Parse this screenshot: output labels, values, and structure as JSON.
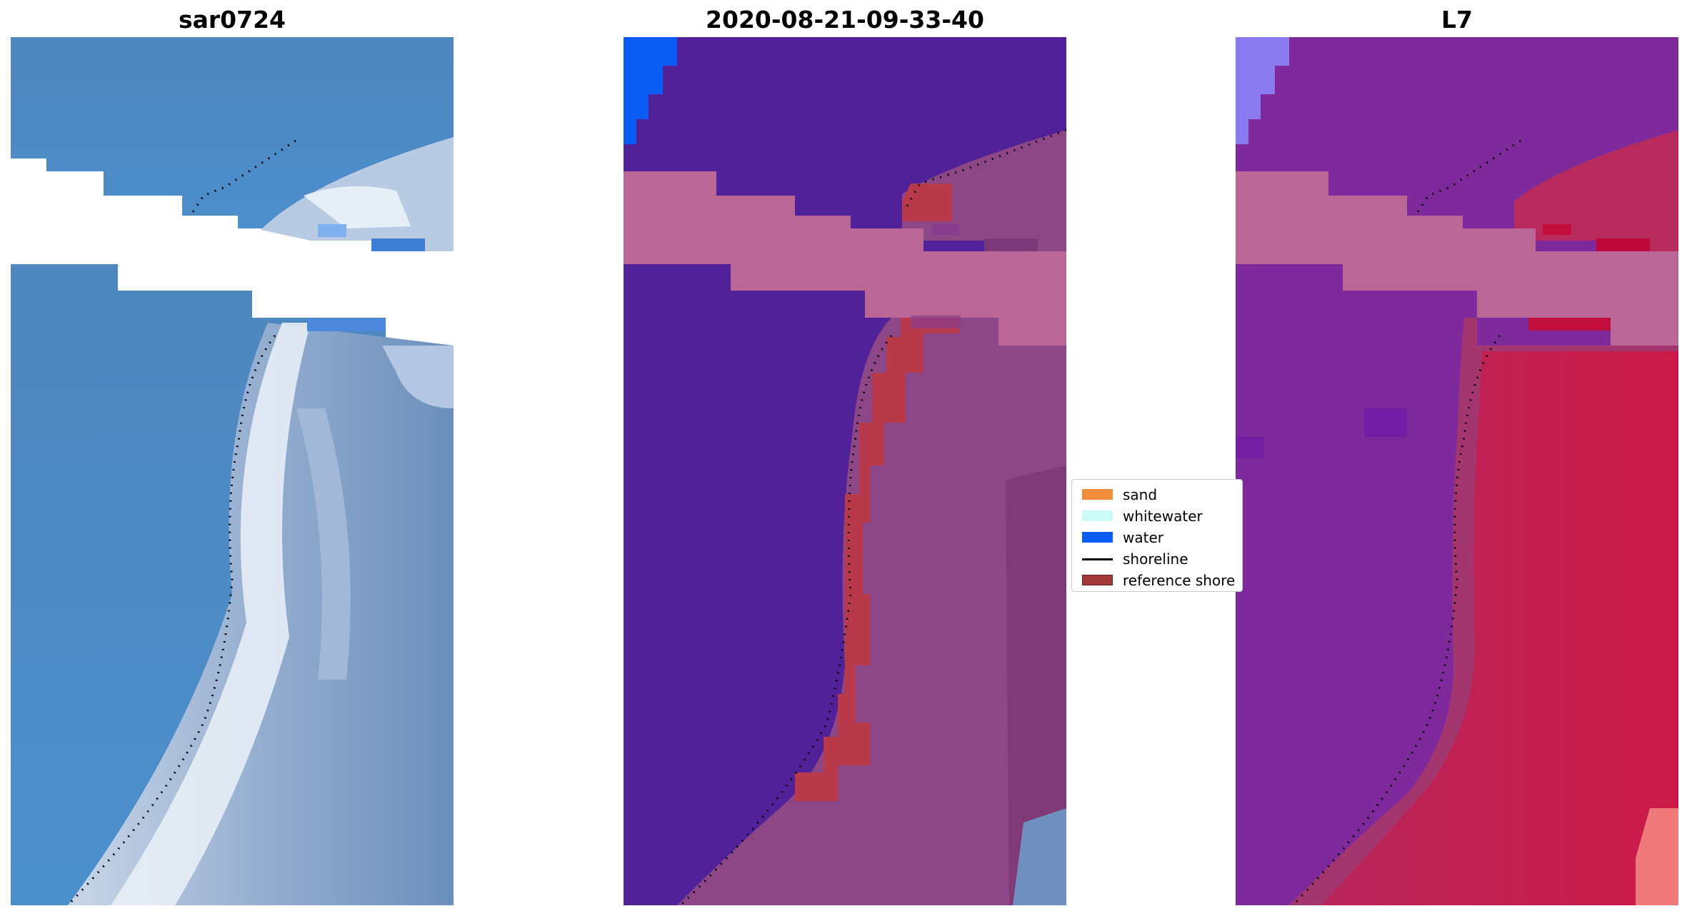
{
  "panels": [
    {
      "title": "sar0724"
    },
    {
      "title": "2020-08-21-09-33-40"
    },
    {
      "title": "L7"
    }
  ],
  "legend": {
    "items": [
      {
        "label": "sand",
        "color": "#f28c3c",
        "kind": "patch"
      },
      {
        "label": "whitewater",
        "color": "#ccfaf4",
        "kind": "patch"
      },
      {
        "label": "water",
        "color": "#0b5cf5",
        "kind": "patch"
      },
      {
        "label": "shoreline",
        "color": "#000000",
        "kind": "line"
      },
      {
        "label": "reference shore",
        "color": "#a33a3a",
        "kind": "patch",
        "edge": "#6e1d1d"
      }
    ]
  },
  "colors": {
    "rgb_water": "#4a8ac8",
    "rgb_beach": "#d8e2ee",
    "rgb_land": "#6e92bc",
    "classified_water": "#51219a",
    "classified_land": "#8e4786",
    "classified_nodata_band": "#ba6795",
    "reference_shore": "#b83a4a",
    "mndwi_water": "#7e2a9c",
    "mndwi_land": "#c71c4b",
    "shoreline_dots": "#000000"
  }
}
